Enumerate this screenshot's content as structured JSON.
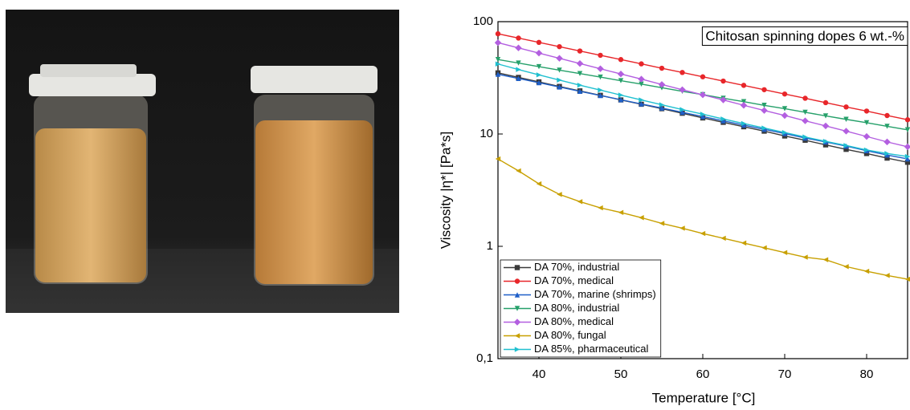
{
  "chart_data": {
    "type": "line",
    "title": "Chitosan spinning dopes 6 wt.-%",
    "x_label": "Temperature [°C]",
    "y_label": "Viscosity |η*| [Pa*s]",
    "x": [
      35,
      37.5,
      40,
      42.5,
      45,
      47.5,
      50,
      52.5,
      55,
      57.5,
      60,
      62.5,
      65,
      67.5,
      70,
      72.5,
      75,
      77.5,
      80,
      82.5,
      85
    ],
    "xlim": [
      35,
      85
    ],
    "xticks": [
      40,
      50,
      60,
      70,
      80
    ],
    "ylim": [
      0.1,
      100
    ],
    "log_y": true,
    "yticks": [
      {
        "value": 0.1,
        "label": "0,1"
      },
      1,
      10,
      100
    ],
    "legend": "lower left",
    "series": [
      {
        "name": "DA 70%, industrial",
        "color": "#3a3a3a",
        "marker": "square",
        "values": [
          35.0,
          31.9,
          29.1,
          26.5,
          24.2,
          22.1,
          20.1,
          18.4,
          16.8,
          15.3,
          13.9,
          12.7,
          11.6,
          10.6,
          9.6,
          8.8,
          8.0,
          7.3,
          6.7,
          6.1,
          5.6
        ]
      },
      {
        "name": "DA 70%, medical",
        "color": "#e8262a",
        "marker": "circle",
        "values": [
          78,
          71.4,
          65.4,
          59.9,
          54.8,
          50.2,
          46.0,
          42.1,
          38.5,
          35.3,
          32.3,
          29.6,
          27.1,
          24.8,
          22.7,
          20.8,
          19.0,
          17.4,
          16.0,
          14.6,
          13.4
        ]
      },
      {
        "name": "DA 70%, marine (shrimps)",
        "color": "#1f5fc8",
        "marker": "triangle-up",
        "values": [
          34,
          31.2,
          28.6,
          26.2,
          24.0,
          22.0,
          20.2,
          18.5,
          17.0,
          15.6,
          14.3,
          13.1,
          12.0,
          11.0,
          10.1,
          9.2,
          8.5,
          7.8,
          7.1,
          6.5,
          6.0
        ]
      },
      {
        "name": "DA 80%, industrial",
        "color": "#26a06a",
        "marker": "triangle-down",
        "values": [
          46,
          42.8,
          39.8,
          37.0,
          34.5,
          32.1,
          29.8,
          27.8,
          25.8,
          24.0,
          22.4,
          20.8,
          19.4,
          18.0,
          16.8,
          15.6,
          14.5,
          13.5,
          12.6,
          11.7,
          10.9
        ]
      },
      {
        "name": "DA 80%, medical",
        "color": "#b35fe0",
        "marker": "diamond",
        "values": [
          65,
          58.4,
          52.5,
          47.2,
          42.4,
          38.1,
          34.2,
          30.8,
          27.6,
          24.8,
          22.3,
          20.1,
          18.0,
          16.2,
          14.6,
          13.1,
          11.8,
          10.6,
          9.5,
          8.5,
          7.7
        ]
      },
      {
        "name": "DA 80%, fungal",
        "color": "#c8a000",
        "marker": "triangle-left",
        "values": [
          6.0,
          4.7,
          3.6,
          2.9,
          2.5,
          2.2,
          2.0,
          1.8,
          1.6,
          1.45,
          1.3,
          1.18,
          1.07,
          0.97,
          0.88,
          0.8,
          0.76,
          0.66,
          0.6,
          0.55,
          0.51
        ]
      },
      {
        "name": "DA 85%, pharmaceutical",
        "color": "#20c0d0",
        "marker": "triangle-right",
        "values": [
          42,
          37.5,
          33.6,
          30.2,
          27.2,
          24.6,
          22.2,
          20.1,
          18.2,
          16.5,
          15.0,
          13.6,
          12.4,
          11.3,
          10.3,
          9.4,
          8.6,
          7.9,
          7.2,
          6.7,
          6.3
        ]
      }
    ]
  }
}
